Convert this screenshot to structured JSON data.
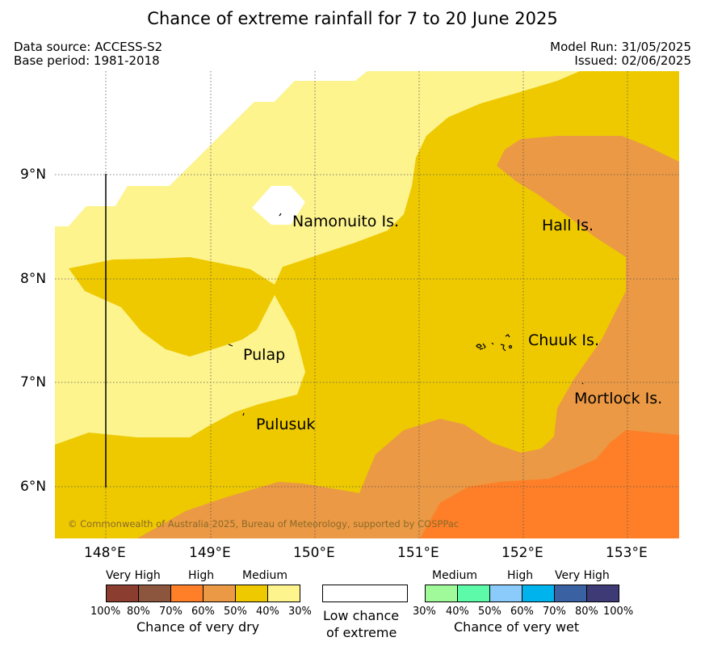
{
  "title": "Chance of extreme rainfall for 7 to 20 June 2025",
  "meta": {
    "data_source": "Data source: ACCESS-S2",
    "base_period": "Base period: 1981-2018",
    "model_run": "Model Run: 31/05/2025",
    "issued": "Issued: 02/06/2025"
  },
  "map": {
    "lon_ticks": [
      "148°E",
      "149°E",
      "150°E",
      "151°E",
      "152°E",
      "153°E"
    ],
    "lat_ticks": [
      "9°N",
      "8°N",
      "7°N",
      "6°N"
    ],
    "places": {
      "namonuito": "Namonuito Is.",
      "hall": "Hall Is.",
      "pulap": "Pulap",
      "chuuk": "Chuuk Is.",
      "pulusuk": "Pulusuk",
      "mortlock": "Mortlock Is."
    },
    "copyright": "© Commonwealth of Australia 2025, Bureau of Meteorology, supported by COSPPac",
    "colors": {
      "dry_30_40": "#fdf48e",
      "dry_40_50": "#eec900",
      "dry_50_60": "#eb9944",
      "dry_60_70": "#fe7f28",
      "dry_70_80": "#8b553e",
      "dry_80_100": "#8b3d2f",
      "low_chance": "#ffffff",
      "wet_30_40": "#a1fa9a",
      "wet_40_50": "#5cfaa9",
      "wet_50_60": "#8acbfb",
      "wet_60_70": "#00b3ec",
      "wet_70_80": "#3a61a1",
      "wet_80_100": "#3d3a75"
    }
  },
  "legend": {
    "dry": {
      "categories": [
        "Very High",
        "High",
        "Medium"
      ],
      "ticks": [
        "100%",
        "80%",
        "70%",
        "60%",
        "50%",
        "40%",
        "30%"
      ],
      "caption": "Chance of very dry"
    },
    "low": {
      "line1": "Low chance",
      "line2": "of extreme"
    },
    "wet": {
      "categories": [
        "Medium",
        "High",
        "Very High"
      ],
      "ticks": [
        "30%",
        "40%",
        "50%",
        "60%",
        "70%",
        "80%",
        "100%"
      ],
      "caption": "Chance of very wet"
    }
  }
}
